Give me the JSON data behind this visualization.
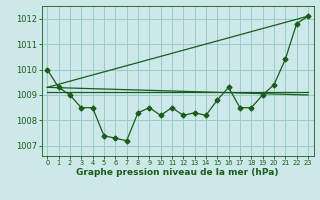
{
  "background_color": "#cce8e8",
  "grid_color": "#99cccc",
  "line_color": "#1a5c1a",
  "title": "Graphe pression niveau de la mer (hPa)",
  "ylim": [
    1006.6,
    1012.5
  ],
  "yticks": [
    1007,
    1008,
    1009,
    1010,
    1011,
    1012
  ],
  "xlim": [
    -0.5,
    23.5
  ],
  "xticks": [
    0,
    1,
    2,
    3,
    4,
    5,
    6,
    7,
    8,
    9,
    10,
    11,
    12,
    13,
    14,
    15,
    16,
    17,
    18,
    19,
    20,
    21,
    22,
    23
  ],
  "xlabel_ticks": [
    "0",
    "1",
    "2",
    "3",
    "4",
    "5",
    "6",
    "7",
    "8",
    "9",
    "10",
    "11",
    "12",
    "13",
    "14",
    "15",
    "16",
    "17",
    "18",
    "19",
    "20",
    "21",
    "22",
    "23"
  ],
  "series1_x": [
    0,
    1,
    2,
    3,
    4,
    5,
    6,
    7,
    8,
    9,
    10,
    11,
    12,
    13,
    14,
    15,
    16,
    17,
    18,
    19,
    20,
    21,
    22,
    23
  ],
  "series1_y": [
    1010.0,
    1009.3,
    1009.0,
    1008.5,
    1008.5,
    1007.4,
    1007.3,
    1007.2,
    1008.3,
    1008.5,
    1008.2,
    1008.5,
    1008.2,
    1008.3,
    1008.2,
    1008.8,
    1009.3,
    1008.5,
    1008.5,
    1009.0,
    1009.4,
    1010.4,
    1011.8,
    1012.1
  ],
  "line2_x": [
    0,
    23
  ],
  "line2_y": [
    1009.3,
    1009.0
  ],
  "line3_x": [
    0,
    23
  ],
  "line3_y": [
    1009.3,
    1012.1
  ],
  "line4_x": [
    0,
    23
  ],
  "line4_y": [
    1009.1,
    1009.1
  ],
  "marker_style": "D",
  "marker_size": 2.5,
  "line_width": 0.9,
  "ytick_fontsize": 6.0,
  "xtick_fontsize": 4.8,
  "title_fontsize": 6.5,
  "fig_width": 3.2,
  "fig_height": 2.0,
  "dpi": 100
}
